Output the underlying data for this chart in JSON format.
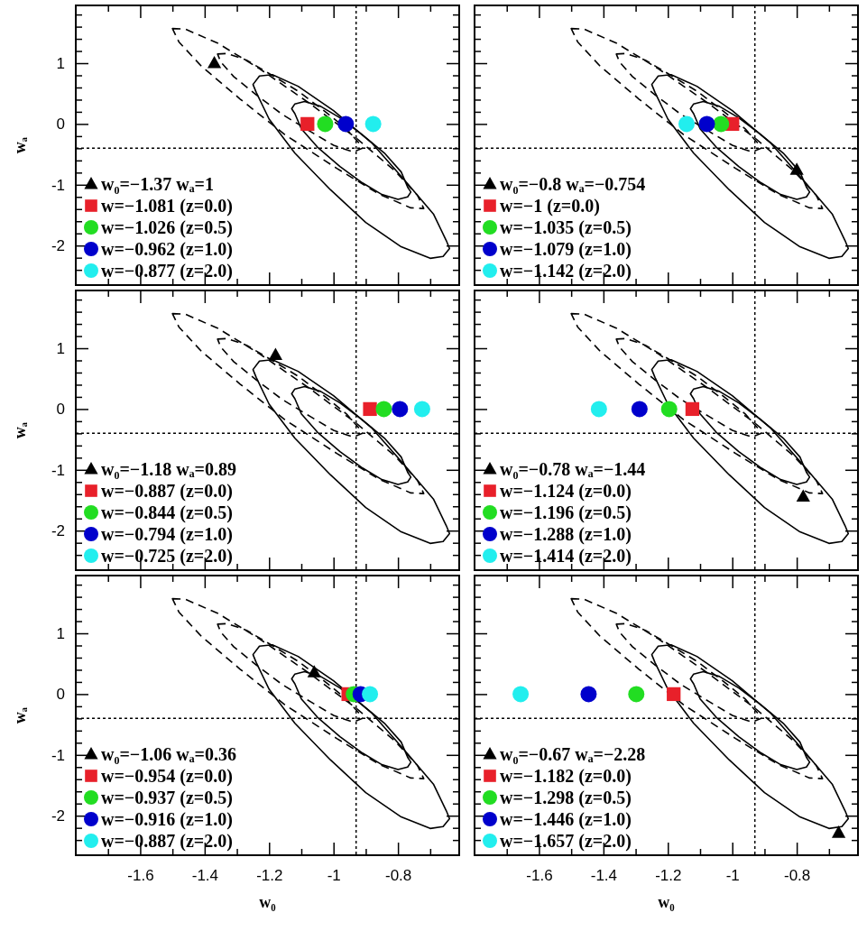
{
  "chart_data": [
    {
      "type": "scatter",
      "ylabel": "wₐ",
      "xlim": [
        -1.8,
        -0.61
      ],
      "ylim": [
        -2.65,
        1.95
      ],
      "xticks": [
        {
          "value": -1.7,
          "label": null
        },
        -1.6,
        {
          "value": -1.5,
          "label": null
        },
        -1.4,
        {
          "value": -1.3,
          "label": null
        },
        -1.2,
        {
          "value": -1.1,
          "label": null
        },
        -1,
        {
          "value": -0.9,
          "label": null
        },
        -0.8,
        {
          "value": -0.7,
          "label": null
        }
      ],
      "yticks": [
        {
          "value": -2.4,
          "label": null
        },
        {
          "value": -2.2,
          "label": null
        },
        -2,
        {
          "value": -1.8,
          "label": null
        },
        {
          "value": -1.6,
          "label": null
        },
        {
          "value": -1.4,
          "label": null
        },
        {
          "value": -1.2,
          "label": null
        },
        -1,
        {
          "value": -0.8,
          "label": null
        },
        {
          "value": -0.6,
          "label": null
        },
        {
          "value": -0.4,
          "label": null
        },
        {
          "value": -0.2,
          "label": null
        },
        0,
        {
          "value": 0.2,
          "label": null
        },
        {
          "value": 0.4,
          "label": null
        },
        {
          "value": 0.6,
          "label": null
        },
        {
          "value": 0.8,
          "label": null
        },
        1,
        {
          "value": 1.2,
          "label": null
        },
        {
          "value": 1.4,
          "label": null
        },
        {
          "value": 1.6,
          "label": null
        },
        {
          "value": 1.8,
          "label": null
        }
      ],
      "tick_labels": "y",
      "legend": "bottom left",
      "grid": false,
      "ref_lines": [
        {
          "axis": "x",
          "value": -0.93,
          "line_style": "dotted"
        },
        {
          "axis": "y",
          "value": -0.4,
          "line_style": "dotted"
        }
      ],
      "series": [
        {
          "name": "w₀=−1.37 wₐ=1",
          "color": "#000000",
          "marker": "triangle",
          "x": [
            -1.37
          ],
          "values": [
            1
          ]
        },
        {
          "name": "w=−1.081 (z=0.0)",
          "color": "#e8202a",
          "marker": "square",
          "x": [
            -1.081
          ],
          "values": [
            0
          ]
        },
        {
          "name": "w=−1.026 (z=0.5)",
          "color": "#22dd22",
          "marker": "circle",
          "x": [
            -1.026
          ],
          "values": [
            0
          ]
        },
        {
          "name": "w=−0.962 (z=1.0)",
          "color": "#0000cc",
          "marker": "circle",
          "x": [
            -0.962
          ],
          "values": [
            0
          ]
        },
        {
          "name": "w=−0.877 (z=2.0)",
          "color": "#22eeee",
          "marker": "circle",
          "x": [
            -0.877
          ],
          "values": [
            0
          ]
        }
      ]
    },
    {
      "type": "scatter",
      "xlim": [
        -1.8,
        -0.61
      ],
      "ylim": [
        -2.65,
        1.95
      ],
      "xticks": [
        {
          "value": -1.7,
          "label": null
        },
        -1.6,
        {
          "value": -1.5,
          "label": null
        },
        -1.4,
        {
          "value": -1.3,
          "label": null
        },
        -1.2,
        {
          "value": -1.1,
          "label": null
        },
        -1,
        {
          "value": -0.9,
          "label": null
        },
        -0.8,
        {
          "value": -0.7,
          "label": null
        }
      ],
      "yticks": [
        {
          "value": -2.4,
          "label": null
        },
        {
          "value": -2.2,
          "label": null
        },
        -2,
        {
          "value": -1.8,
          "label": null
        },
        {
          "value": -1.6,
          "label": null
        },
        {
          "value": -1.4,
          "label": null
        },
        {
          "value": -1.2,
          "label": null
        },
        -1,
        {
          "value": -0.8,
          "label": null
        },
        {
          "value": -0.6,
          "label": null
        },
        {
          "value": -0.4,
          "label": null
        },
        {
          "value": -0.2,
          "label": null
        },
        0,
        {
          "value": 0.2,
          "label": null
        },
        {
          "value": 0.4,
          "label": null
        },
        {
          "value": 0.6,
          "label": null
        },
        {
          "value": 0.8,
          "label": null
        },
        1,
        {
          "value": 1.2,
          "label": null
        },
        {
          "value": 1.4,
          "label": null
        },
        {
          "value": 1.6,
          "label": null
        },
        {
          "value": 1.8,
          "label": null
        }
      ],
      "tick_labels": false,
      "legend": "bottom left",
      "grid": false,
      "ref_lines": [
        {
          "axis": "x",
          "value": -0.93,
          "line_style": "dotted"
        },
        {
          "axis": "y",
          "value": -0.4,
          "line_style": "dotted"
        }
      ],
      "series": [
        {
          "name": "w₀=−0.8 wₐ=−0.754",
          "color": "#000000",
          "marker": "triangle",
          "x": [
            -0.8
          ],
          "values": [
            -0.754
          ]
        },
        {
          "name": "w=−1 (z=0.0)",
          "color": "#e8202a",
          "marker": "square",
          "x": [
            -1
          ],
          "values": [
            0
          ]
        },
        {
          "name": "w=−1.035 (z=0.5)",
          "color": "#22dd22",
          "marker": "circle",
          "x": [
            -1.035
          ],
          "values": [
            0
          ]
        },
        {
          "name": "w=−1.079 (z=1.0)",
          "color": "#0000cc",
          "marker": "circle",
          "x": [
            -1.079
          ],
          "values": [
            0
          ]
        },
        {
          "name": "w=−1.142 (z=2.0)",
          "color": "#22eeee",
          "marker": "circle",
          "x": [
            -1.142
          ],
          "values": [
            0
          ]
        }
      ]
    },
    {
      "type": "scatter",
      "ylabel": "wₐ",
      "xlim": [
        -1.8,
        -0.61
      ],
      "ylim": [
        -2.65,
        1.95
      ],
      "xticks": [
        {
          "value": -1.7,
          "label": null
        },
        -1.6,
        {
          "value": -1.5,
          "label": null
        },
        -1.4,
        {
          "value": -1.3,
          "label": null
        },
        -1.2,
        {
          "value": -1.1,
          "label": null
        },
        -1,
        {
          "value": -0.9,
          "label": null
        },
        -0.8,
        {
          "value": -0.7,
          "label": null
        }
      ],
      "yticks": [
        {
          "value": -2.4,
          "label": null
        },
        {
          "value": -2.2,
          "label": null
        },
        -2,
        {
          "value": -1.8,
          "label": null
        },
        {
          "value": -1.6,
          "label": null
        },
        {
          "value": -1.4,
          "label": null
        },
        {
          "value": -1.2,
          "label": null
        },
        -1,
        {
          "value": -0.8,
          "label": null
        },
        {
          "value": -0.6,
          "label": null
        },
        {
          "value": -0.4,
          "label": null
        },
        {
          "value": -0.2,
          "label": null
        },
        0,
        {
          "value": 0.2,
          "label": null
        },
        {
          "value": 0.4,
          "label": null
        },
        {
          "value": 0.6,
          "label": null
        },
        {
          "value": 0.8,
          "label": null
        },
        1,
        {
          "value": 1.2,
          "label": null
        },
        {
          "value": 1.4,
          "label": null
        },
        {
          "value": 1.6,
          "label": null
        },
        {
          "value": 1.8,
          "label": null
        }
      ],
      "tick_labels": "y",
      "legend": "bottom left",
      "grid": false,
      "ref_lines": [
        {
          "axis": "x",
          "value": -0.93,
          "line_style": "dotted"
        },
        {
          "axis": "y",
          "value": -0.4,
          "line_style": "dotted"
        }
      ],
      "series": [
        {
          "name": "w₀=−1.18 wₐ=0.89",
          "color": "#000000",
          "marker": "triangle",
          "x": [
            -1.18
          ],
          "values": [
            0.89
          ]
        },
        {
          "name": "w=−0.887 (z=0.0)",
          "color": "#e8202a",
          "marker": "square",
          "x": [
            -0.887
          ],
          "values": [
            0
          ]
        },
        {
          "name": "w=−0.844 (z=0.5)",
          "color": "#22dd22",
          "marker": "circle",
          "x": [
            -0.844
          ],
          "values": [
            0
          ]
        },
        {
          "name": "w=−0.794 (z=1.0)",
          "color": "#0000cc",
          "marker": "circle",
          "x": [
            -0.794
          ],
          "values": [
            0
          ]
        },
        {
          "name": "w=−0.725 (z=2.0)",
          "color": "#22eeee",
          "marker": "circle",
          "x": [
            -0.725
          ],
          "values": [
            0
          ]
        }
      ]
    },
    {
      "type": "scatter",
      "xlim": [
        -1.8,
        -0.61
      ],
      "ylim": [
        -2.65,
        1.95
      ],
      "xticks": [
        {
          "value": -1.7,
          "label": null
        },
        -1.6,
        {
          "value": -1.5,
          "label": null
        },
        -1.4,
        {
          "value": -1.3,
          "label": null
        },
        -1.2,
        {
          "value": -1.1,
          "label": null
        },
        -1,
        {
          "value": -0.9,
          "label": null
        },
        -0.8,
        {
          "value": -0.7,
          "label": null
        }
      ],
      "yticks": [
        {
          "value": -2.4,
          "label": null
        },
        {
          "value": -2.2,
          "label": null
        },
        -2,
        {
          "value": -1.8,
          "label": null
        },
        {
          "value": -1.6,
          "label": null
        },
        {
          "value": -1.4,
          "label": null
        },
        {
          "value": -1.2,
          "label": null
        },
        -1,
        {
          "value": -0.8,
          "label": null
        },
        {
          "value": -0.6,
          "label": null
        },
        {
          "value": -0.4,
          "label": null
        },
        {
          "value": -0.2,
          "label": null
        },
        0,
        {
          "value": 0.2,
          "label": null
        },
        {
          "value": 0.4,
          "label": null
        },
        {
          "value": 0.6,
          "label": null
        },
        {
          "value": 0.8,
          "label": null
        },
        1,
        {
          "value": 1.2,
          "label": null
        },
        {
          "value": 1.4,
          "label": null
        },
        {
          "value": 1.6,
          "label": null
        },
        {
          "value": 1.8,
          "label": null
        }
      ],
      "tick_labels": false,
      "legend": "bottom left",
      "grid": false,
      "ref_lines": [
        {
          "axis": "x",
          "value": -0.93,
          "line_style": "dotted"
        },
        {
          "axis": "y",
          "value": -0.4,
          "line_style": "dotted"
        }
      ],
      "series": [
        {
          "name": "w₀=−0.78 wₐ=−1.44",
          "color": "#000000",
          "marker": "triangle",
          "x": [
            -0.78
          ],
          "values": [
            -1.44
          ]
        },
        {
          "name": "w=−1.124 (z=0.0)",
          "color": "#e8202a",
          "marker": "square",
          "x": [
            -1.124
          ],
          "values": [
            0
          ]
        },
        {
          "name": "w=−1.196 (z=0.5)",
          "color": "#22dd22",
          "marker": "circle",
          "x": [
            -1.196
          ],
          "values": [
            0
          ]
        },
        {
          "name": "w=−1.288 (z=1.0)",
          "color": "#0000cc",
          "marker": "circle",
          "x": [
            -1.288
          ],
          "values": [
            0
          ]
        },
        {
          "name": "w=−1.414 (z=2.0)",
          "color": "#22eeee",
          "marker": "circle",
          "x": [
            -1.414
          ],
          "values": [
            0
          ]
        }
      ]
    },
    {
      "type": "scatter",
      "xlabel": "w₀",
      "ylabel": "wₐ",
      "xlim": [
        -1.8,
        -0.61
      ],
      "ylim": [
        -2.65,
        1.95
      ],
      "xticks": [
        {
          "value": -1.7,
          "label": null
        },
        -1.6,
        {
          "value": -1.5,
          "label": null
        },
        -1.4,
        {
          "value": -1.3,
          "label": null
        },
        -1.2,
        {
          "value": -1.1,
          "label": null
        },
        -1,
        {
          "value": -0.9,
          "label": null
        },
        -0.8,
        {
          "value": -0.7,
          "label": null
        }
      ],
      "yticks": [
        {
          "value": -2.4,
          "label": null
        },
        {
          "value": -2.2,
          "label": null
        },
        -2,
        {
          "value": -1.8,
          "label": null
        },
        {
          "value": -1.6,
          "label": null
        },
        {
          "value": -1.4,
          "label": null
        },
        {
          "value": -1.2,
          "label": null
        },
        -1,
        {
          "value": -0.8,
          "label": null
        },
        {
          "value": -0.6,
          "label": null
        },
        {
          "value": -0.4,
          "label": null
        },
        {
          "value": -0.2,
          "label": null
        },
        0,
        {
          "value": 0.2,
          "label": null
        },
        {
          "value": 0.4,
          "label": null
        },
        {
          "value": 0.6,
          "label": null
        },
        {
          "value": 0.8,
          "label": null
        },
        1,
        {
          "value": 1.2,
          "label": null
        },
        {
          "value": 1.4,
          "label": null
        },
        {
          "value": 1.6,
          "label": null
        },
        {
          "value": 1.8,
          "label": null
        }
      ],
      "legend": "bottom left",
      "grid": false,
      "ref_lines": [
        {
          "axis": "x",
          "value": -0.93,
          "line_style": "dotted"
        },
        {
          "axis": "y",
          "value": -0.4,
          "line_style": "dotted"
        }
      ],
      "series": [
        {
          "name": "w₀=−1.06 wₐ=0.36",
          "color": "#000000",
          "marker": "triangle",
          "x": [
            -1.06
          ],
          "values": [
            0.36
          ]
        },
        {
          "name": "w=−0.954 (z=0.0)",
          "color": "#e8202a",
          "marker": "square",
          "x": [
            -0.954
          ],
          "values": [
            0
          ]
        },
        {
          "name": "w=−0.937 (z=0.5)",
          "color": "#22dd22",
          "marker": "circle",
          "x": [
            -0.937
          ],
          "values": [
            0
          ]
        },
        {
          "name": "w=−0.916 (z=1.0)",
          "color": "#0000cc",
          "marker": "circle",
          "x": [
            -0.916
          ],
          "values": [
            0
          ]
        },
        {
          "name": "w=−0.887 (z=2.0)",
          "color": "#22eeee",
          "marker": "circle",
          "x": [
            -0.887
          ],
          "values": [
            0
          ]
        }
      ]
    },
    {
      "type": "scatter",
      "xlabel": "w₀",
      "xlim": [
        -1.8,
        -0.61
      ],
      "ylim": [
        -2.65,
        1.95
      ],
      "xticks": [
        {
          "value": -1.7,
          "label": null
        },
        -1.6,
        {
          "value": -1.5,
          "label": null
        },
        -1.4,
        {
          "value": -1.3,
          "label": null
        },
        -1.2,
        {
          "value": -1.1,
          "label": null
        },
        -1,
        {
          "value": -0.9,
          "label": null
        },
        -0.8,
        {
          "value": -0.7,
          "label": null
        }
      ],
      "yticks": [
        {
          "value": -2.4,
          "label": null
        },
        {
          "value": -2.2,
          "label": null
        },
        -2,
        {
          "value": -1.8,
          "label": null
        },
        {
          "value": -1.6,
          "label": null
        },
        {
          "value": -1.4,
          "label": null
        },
        {
          "value": -1.2,
          "label": null
        },
        -1,
        {
          "value": -0.8,
          "label": null
        },
        {
          "value": -0.6,
          "label": null
        },
        {
          "value": -0.4,
          "label": null
        },
        {
          "value": -0.2,
          "label": null
        },
        0,
        {
          "value": 0.2,
          "label": null
        },
        {
          "value": 0.4,
          "label": null
        },
        {
          "value": 0.6,
          "label": null
        },
        {
          "value": 0.8,
          "label": null
        },
        1,
        {
          "value": 1.2,
          "label": null
        },
        {
          "value": 1.4,
          "label": null
        },
        {
          "value": 1.6,
          "label": null
        },
        {
          "value": 1.8,
          "label": null
        }
      ],
      "tick_labels": "x",
      "legend": "bottom left",
      "grid": false,
      "ref_lines": [
        {
          "axis": "x",
          "value": -0.93,
          "line_style": "dotted"
        },
        {
          "axis": "y",
          "value": -0.4,
          "line_style": "dotted"
        }
      ],
      "series": [
        {
          "name": "w₀=−0.67 wₐ=−2.28",
          "color": "#000000",
          "marker": "triangle",
          "x": [
            -0.67
          ],
          "values": [
            -2.28
          ]
        },
        {
          "name": "w=−1.182 (z=0.0)",
          "color": "#e8202a",
          "marker": "square",
          "x": [
            -1.182
          ],
          "values": [
            0
          ]
        },
        {
          "name": "w=−1.298 (z=0.5)",
          "color": "#22dd22",
          "marker": "circle",
          "x": [
            -1.298
          ],
          "values": [
            0
          ]
        },
        {
          "name": "w=−1.446 (z=1.0)",
          "color": "#0000cc",
          "marker": "circle",
          "x": [
            -1.446
          ],
          "values": [
            0
          ]
        },
        {
          "name": "w=−1.657 (z=2.0)",
          "color": "#22eeee",
          "marker": "circle",
          "x": [
            -1.657
          ],
          "values": [
            0
          ]
        }
      ]
    }
  ]
}
